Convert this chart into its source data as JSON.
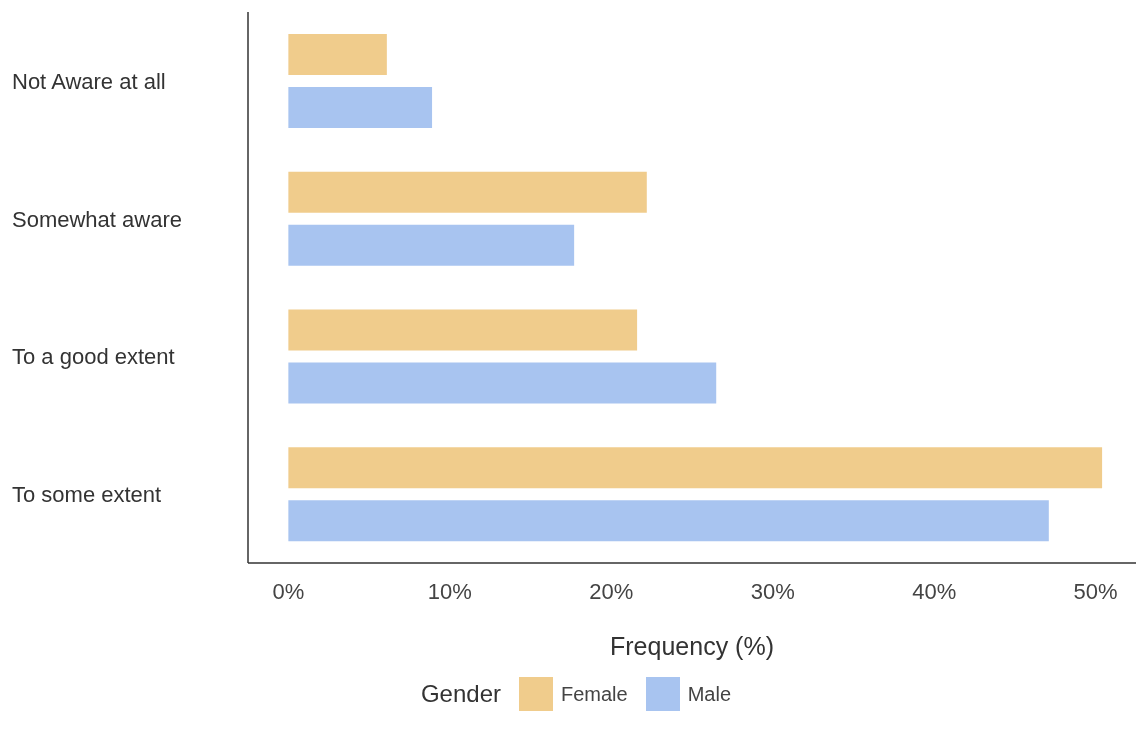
{
  "chart_data": {
    "type": "bar",
    "orientation": "horizontal",
    "xlabel": "Frequency (%)",
    "legend_title": "Gender",
    "legend": "bottom",
    "grid": false,
    "categories": [
      "Not Aware at all",
      "Somewhat aware",
      "To a good extent",
      "To some extent"
    ],
    "series": [
      {
        "name": "Female",
        "color": "#f0cc8c",
        "values": [
          6.1,
          22.2,
          21.6,
          50.4
        ]
      },
      {
        "name": "Male",
        "color": "#a8c4f0",
        "values": [
          8.9,
          17.7,
          26.5,
          47.1
        ]
      }
    ],
    "xlim": [
      -2.5,
      52.5
    ],
    "xticks": [
      {
        "value": 0,
        "label": "0%"
      },
      {
        "value": 10,
        "label": "10%"
      },
      {
        "value": 20,
        "label": "20%"
      },
      {
        "value": 30,
        "label": "30%"
      },
      {
        "value": 40,
        "label": "40%"
      },
      {
        "value": 50,
        "label": "50%"
      }
    ]
  }
}
